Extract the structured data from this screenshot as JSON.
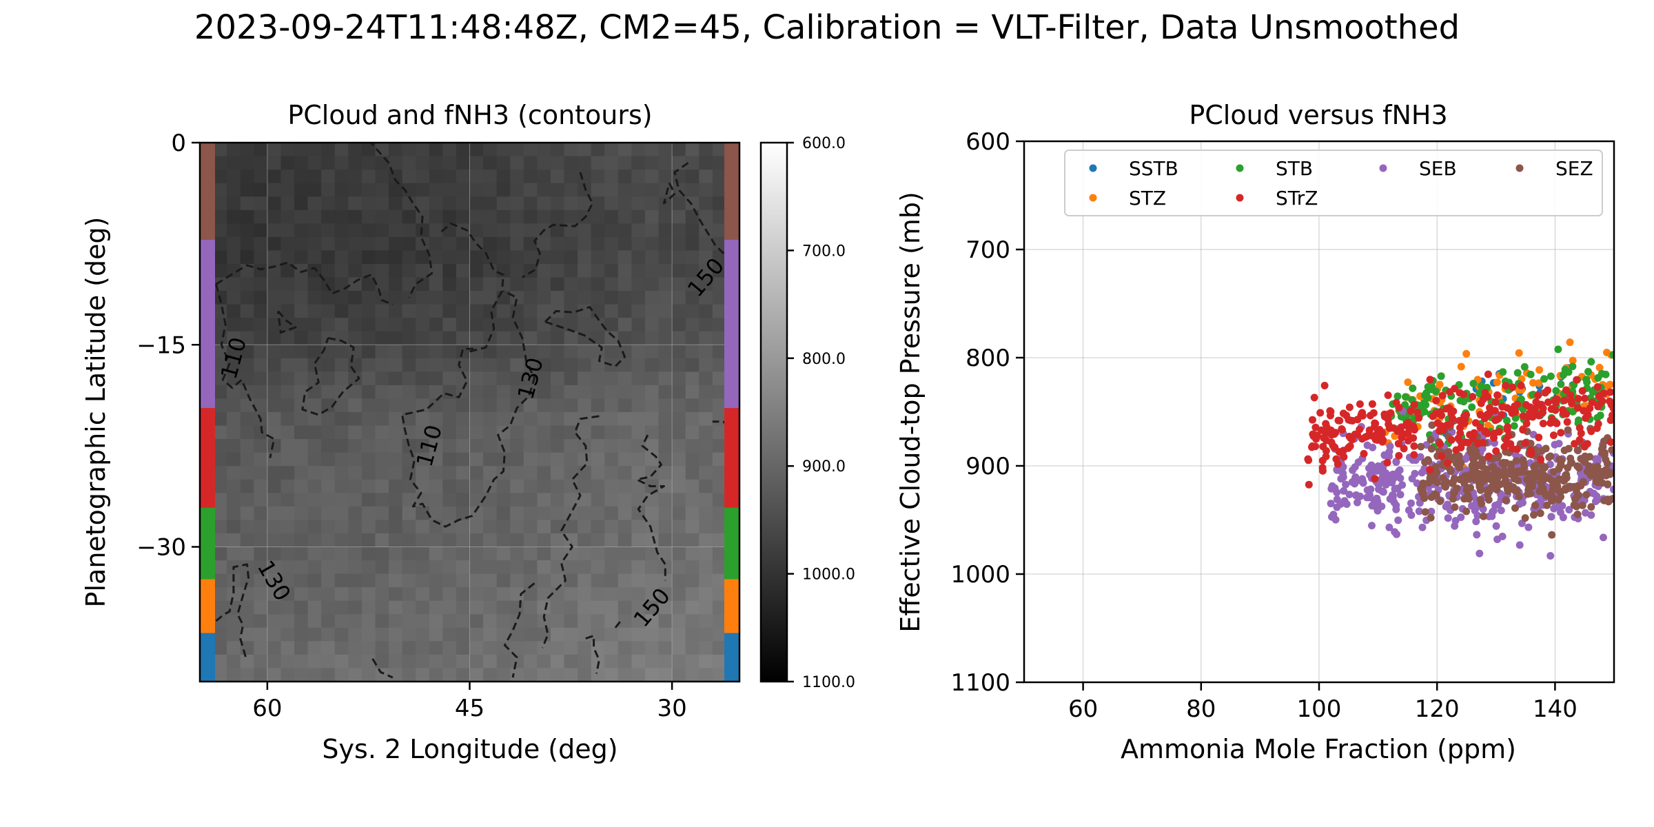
{
  "suptitle": "2023-09-24T11:48:48Z, CM2=45, Calibration = VLT-Filter, Data Unsmoothed",
  "chart_data": [
    {
      "type": "heatmap",
      "title": "PCloud and fNH3 (contours)",
      "xlabel": "Sys. 2 Longitude (deg)",
      "ylabel": "Planetographic Latitude (deg)",
      "xlim": [
        65,
        25
      ],
      "ylim": [
        -40,
        0
      ],
      "xticks": [
        {
          "v": 60,
          "label": "60"
        },
        {
          "v": 45,
          "label": "45"
        },
        {
          "v": 30,
          "label": "30"
        }
      ],
      "yticks": [
        {
          "v": 0,
          "label": "0"
        },
        {
          "v": -15,
          "label": "−15"
        },
        {
          "v": -30,
          "label": "−30"
        }
      ],
      "grid": true,
      "colormap": "gray_r",
      "colorbar": {
        "range": [
          600,
          1100
        ],
        "ticks": [
          {
            "v": 600,
            "label": "600.0"
          },
          {
            "v": 700,
            "label": "700.0"
          },
          {
            "v": 800,
            "label": "800.0"
          },
          {
            "v": 900,
            "label": "900.0"
          },
          {
            "v": 1000,
            "label": "1000.0"
          },
          {
            "v": 1100,
            "label": "1100.0"
          }
        ]
      },
      "pcloud_field": {
        "rows": 40,
        "cols": 40,
        "lat_range": [
          -40,
          0
        ],
        "lon_range": [
          65,
          25
        ],
        "value_by_lat": [
          {
            "lat": 0,
            "v": 975
          },
          {
            "lat": -8,
            "v": 985
          },
          {
            "lat": -15,
            "v": 960
          },
          {
            "lat": -20,
            "v": 920
          },
          {
            "lat": -30,
            "v": 905
          },
          {
            "lat": -40,
            "v": 880
          }
        ],
        "value_by_lon": [
          {
            "lon": 65,
            "dv": 10
          },
          {
            "lon": 45,
            "dv": 0
          },
          {
            "lon": 32,
            "dv": -25
          },
          {
            "lon": 25,
            "dv": -20
          }
        ]
      },
      "contour_labels": [
        {
          "text": "110",
          "lon": 62.5,
          "lat": -16,
          "rot": -75
        },
        {
          "text": "110",
          "lon": 48,
          "lat": -22.5,
          "rot": -75
        },
        {
          "text": "130",
          "lon": 40.5,
          "lat": -17.5,
          "rot": -75
        },
        {
          "text": "150",
          "lon": 27.5,
          "lat": -10,
          "rot": -50
        },
        {
          "text": "130",
          "lon": 59.5,
          "lat": -32.5,
          "rot": 60
        },
        {
          "text": "150",
          "lon": 31.5,
          "lat": -34.5,
          "rot": -50
        }
      ],
      "contours": [
        [
          [
            52.5,
            0.2
          ],
          [
            51.8,
            -0.6
          ],
          [
            51,
            -1.5
          ],
          [
            50.5,
            -2.8
          ],
          [
            49.8,
            -3.5
          ],
          [
            49.2,
            -4.5
          ],
          [
            48.5,
            -5.5
          ],
          [
            48.6,
            -7
          ],
          [
            48,
            -8.3
          ],
          [
            47.8,
            -9.7
          ],
          [
            49,
            -10.5
          ],
          [
            49.5,
            -11.5
          ]
        ],
        [
          [
            63.8,
            -10.5
          ],
          [
            62.5,
            -9.7
          ],
          [
            61.5,
            -9.1
          ],
          [
            60.5,
            -9.4
          ],
          [
            59.5,
            -9.2
          ],
          [
            58.5,
            -8.9
          ],
          [
            57.5,
            -9.6
          ],
          [
            56.5,
            -9.3
          ],
          [
            55.8,
            -10.2
          ],
          [
            55.2,
            -11.2
          ],
          [
            54.2,
            -10.8
          ],
          [
            53.3,
            -10.2
          ],
          [
            52.3,
            -9.8
          ],
          [
            51.8,
            -10.7
          ],
          [
            51.5,
            -11.7
          ],
          [
            50.7,
            -12
          ]
        ],
        [
          [
            63.8,
            -10.5
          ],
          [
            63.4,
            -12
          ],
          [
            63.1,
            -13.5
          ],
          [
            63.4,
            -15
          ],
          [
            62.8,
            -16.4
          ],
          [
            63.3,
            -17.6
          ],
          [
            62.6,
            -18.2
          ],
          [
            61.9,
            -17.6
          ],
          [
            61.3,
            -19
          ],
          [
            60.5,
            -20.5
          ],
          [
            60.4,
            -21.5
          ],
          [
            59.5,
            -22
          ],
          [
            59.8,
            -23.4
          ]
        ],
        [
          [
            59.2,
            -12.5
          ],
          [
            58.6,
            -13.2
          ],
          [
            57.9,
            -13.7
          ],
          [
            59,
            -14.1
          ],
          [
            59.2,
            -12.5
          ]
        ],
        [
          [
            55.5,
            -14.5
          ],
          [
            54.5,
            -14.7
          ],
          [
            53.6,
            -15.2
          ],
          [
            53.8,
            -16.6
          ],
          [
            53.2,
            -17.5
          ],
          [
            54.4,
            -18.5
          ],
          [
            55.2,
            -19.6
          ],
          [
            56.2,
            -20.2
          ],
          [
            57.4,
            -19.8
          ],
          [
            57.2,
            -18.5
          ],
          [
            56.2,
            -17.8
          ],
          [
            56.5,
            -16.4
          ],
          [
            55.8,
            -15.4
          ],
          [
            55.5,
            -14.5
          ]
        ],
        [
          [
            45,
            -15.5
          ],
          [
            43.8,
            -15.2
          ],
          [
            43.2,
            -13.8
          ],
          [
            43.4,
            -12.5
          ],
          [
            42.6,
            -11
          ],
          [
            42.5,
            -9.8
          ],
          [
            43.2,
            -9.5
          ],
          [
            43.8,
            -8.2
          ],
          [
            44.5,
            -7.5
          ],
          [
            45.2,
            -6.5
          ],
          [
            46.4,
            -6
          ],
          [
            47.2,
            -6.7
          ]
        ],
        [
          [
            44.7,
            -15.3
          ],
          [
            45.5,
            -15.3
          ],
          [
            45.8,
            -16.5
          ],
          [
            45.2,
            -17.7
          ],
          [
            45.8,
            -18.9
          ],
          [
            46.9,
            -18.6
          ],
          [
            48.2,
            -19.8
          ],
          [
            50,
            -20.2
          ],
          [
            49.8,
            -21.3
          ],
          [
            49.5,
            -22.5
          ],
          [
            49.1,
            -23.6
          ],
          [
            49.4,
            -25
          ],
          [
            48.6,
            -26
          ],
          [
            49.2,
            -27
          ],
          [
            48.5,
            -26.8
          ],
          [
            47.8,
            -28
          ],
          [
            46.8,
            -28.5
          ],
          [
            45.8,
            -28
          ],
          [
            44.8,
            -27.7
          ],
          [
            43.8,
            -26.2
          ],
          [
            43.2,
            -25
          ],
          [
            42.5,
            -24.4
          ],
          [
            42.4,
            -23
          ],
          [
            42.9,
            -21.7
          ],
          [
            42,
            -21
          ],
          [
            41.5,
            -19.7
          ],
          [
            40.6,
            -18.8
          ],
          [
            40.2,
            -17.5
          ],
          [
            40.8,
            -16.2
          ],
          [
            41.1,
            -14.5
          ],
          [
            41.8,
            -13
          ],
          [
            41.5,
            -11.5
          ],
          [
            42.5,
            -11
          ]
        ],
        [
          [
            36.8,
            -2.2
          ],
          [
            36.4,
            -3.5
          ],
          [
            35.9,
            -4.5
          ],
          [
            36.4,
            -5.5
          ],
          [
            37.2,
            -6.2
          ],
          [
            38.8,
            -6.1
          ],
          [
            39.5,
            -6.5
          ],
          [
            40.2,
            -7.3
          ],
          [
            39.8,
            -8.2
          ],
          [
            40.1,
            -9.4
          ],
          [
            41.1,
            -10
          ]
        ],
        [
          [
            39.4,
            -13.3
          ],
          [
            38.6,
            -12.5
          ],
          [
            37.3,
            -12.6
          ],
          [
            36.1,
            -12.2
          ],
          [
            35.4,
            -13.2
          ],
          [
            34.8,
            -14
          ],
          [
            34,
            -14.7
          ],
          [
            33.5,
            -15.9
          ],
          [
            34.2,
            -16.6
          ],
          [
            35.4,
            -16.2
          ],
          [
            35.2,
            -15.2
          ],
          [
            36.5,
            -14.3
          ],
          [
            37.6,
            -13.9
          ],
          [
            39.4,
            -13.3
          ]
        ],
        [
          [
            35.4,
            -20.3
          ],
          [
            36.8,
            -20.5
          ],
          [
            37.2,
            -21.5
          ],
          [
            36.4,
            -22.5
          ],
          [
            36.3,
            -23.8
          ],
          [
            37.4,
            -25
          ],
          [
            36.8,
            -26.2
          ],
          [
            37.6,
            -27.7
          ],
          [
            38.2,
            -28.8
          ],
          [
            37.4,
            -30
          ],
          [
            38.2,
            -31.2
          ],
          [
            37.9,
            -32.5
          ],
          [
            39.2,
            -33.8
          ],
          [
            39.5,
            -35.2
          ],
          [
            39.2,
            -36.5
          ],
          [
            39.6,
            -37.5
          ]
        ],
        [
          [
            31.8,
            -21.7
          ],
          [
            32.2,
            -22.5
          ],
          [
            31.2,
            -23.3
          ],
          [
            30.8,
            -23.9
          ],
          [
            31.6,
            -24.8
          ],
          [
            32.6,
            -25
          ],
          [
            31.6,
            -25.5
          ],
          [
            30.6,
            -25.5
          ],
          [
            31.8,
            -26.2
          ],
          [
            32.5,
            -27.2
          ],
          [
            31.6,
            -28.5
          ],
          [
            31.1,
            -30.4
          ],
          [
            30.5,
            -31.3
          ],
          [
            30.5,
            -32.5
          ]
        ],
        [
          [
            25.5,
            -26.5
          ],
          [
            25.2,
            -25
          ],
          [
            25.6,
            -24.2
          ],
          [
            25.1,
            -23
          ],
          [
            24.8,
            -22.2
          ],
          [
            25.3,
            -21.5
          ],
          [
            26.2,
            -20.7
          ],
          [
            27,
            -20.7
          ]
        ],
        [
          [
            28.8,
            -1.5
          ],
          [
            29.8,
            -2.2
          ],
          [
            29.5,
            -3.5
          ],
          [
            28.6,
            -4.5
          ],
          [
            27.9,
            -5.8
          ],
          [
            26.8,
            -7.6
          ],
          [
            26.2,
            -8.2
          ],
          [
            25.6,
            -9.5
          ]
        ],
        [
          [
            30.2,
            -3
          ],
          [
            29.8,
            -3.8
          ],
          [
            30.6,
            -4.5
          ],
          [
            30.2,
            -3
          ]
        ],
        [
          [
            52.2,
            -38.3
          ],
          [
            51.6,
            -39.3
          ],
          [
            50.7,
            -39.7
          ]
        ],
        [
          [
            63.8,
            -35.5
          ],
          [
            63.2,
            -35
          ],
          [
            62.8,
            -34.8
          ],
          [
            62.5,
            -33.4
          ],
          [
            62.5,
            -31.5
          ],
          [
            61.5,
            -31.3
          ],
          [
            61.4,
            -32.3
          ],
          [
            61.8,
            -33.6
          ],
          [
            62.2,
            -35
          ],
          [
            61.8,
            -35.8
          ],
          [
            62,
            -36.8
          ],
          [
            61.6,
            -38.2
          ]
        ],
        [
          [
            64.8,
            -39
          ],
          [
            64.3,
            -39.8
          ],
          [
            64,
            -39.5
          ]
        ],
        [
          [
            40.2,
            -32.7
          ],
          [
            41.2,
            -33.5
          ],
          [
            41.3,
            -35
          ],
          [
            41.8,
            -36.2
          ],
          [
            42.4,
            -37.3
          ],
          [
            41.5,
            -38.2
          ],
          [
            41.8,
            -39.7
          ]
        ],
        [
          [
            36.4,
            -36.8
          ],
          [
            35.8,
            -36.6
          ],
          [
            35.8,
            -37.5
          ],
          [
            35.4,
            -38.4
          ],
          [
            35.6,
            -39.4
          ]
        ],
        [
          [
            34.2,
            -36
          ],
          [
            33.8,
            -35.5
          ]
        ]
      ],
      "band_strip": [
        {
          "from": 0,
          "to": -7.2,
          "color": "#8c564b"
        },
        {
          "from": -7.2,
          "to": -19.7,
          "color": "#9467bd"
        },
        {
          "from": -19.7,
          "to": -27.1,
          "color": "#d62728"
        },
        {
          "from": -27.1,
          "to": -32.4,
          "color": "#2ca02c"
        },
        {
          "from": -32.4,
          "to": -36.4,
          "color": "#ff7f0e"
        },
        {
          "from": -36.4,
          "to": -40,
          "color": "#1f77b4"
        }
      ]
    },
    {
      "type": "scatter",
      "title": "PCloud versus fNH3",
      "xlabel": "Ammonia Mole Fraction (ppm)",
      "ylabel": "Effective Cloud-top Pressure (mb)",
      "xlim": [
        50,
        150
      ],
      "ylim": [
        1100,
        600
      ],
      "xticks": [
        60,
        80,
        100,
        120,
        140
      ],
      "yticks": [
        600,
        700,
        800,
        900,
        1000,
        1100
      ],
      "grid": true,
      "legend_position": "top-right",
      "series": [
        {
          "name": "SSTB",
          "color": "#1f77b4",
          "count": 20,
          "x_range": [
            121,
            143
          ],
          "y_center": 830,
          "y_spread": 12
        },
        {
          "name": "STZ",
          "color": "#ff7f0e",
          "count": 90,
          "x_range": [
            111,
            150
          ],
          "y_center": 835,
          "y_spread": 18
        },
        {
          "name": "STB",
          "color": "#2ca02c",
          "count": 150,
          "x_range": [
            112,
            150
          ],
          "y_center": 842,
          "y_spread": 16
        },
        {
          "name": "STrZ",
          "color": "#d62728",
          "count": 300,
          "x_range": [
            98,
            150
          ],
          "y_center": 860,
          "y_spread": 18
        },
        {
          "name": "SEB",
          "color": "#9467bd",
          "count": 400,
          "x_range": [
            102,
            150
          ],
          "y_center": 915,
          "y_spread": 22
        },
        {
          "name": "SEZ",
          "color": "#8c564b",
          "count": 350,
          "x_range": [
            117,
            150
          ],
          "y_center": 908,
          "y_spread": 18
        }
      ]
    }
  ]
}
